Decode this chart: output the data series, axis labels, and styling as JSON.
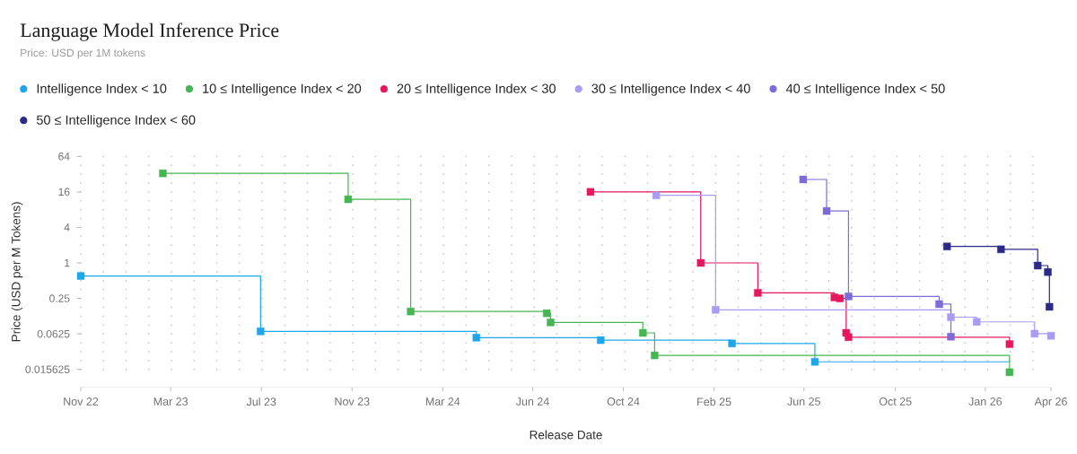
{
  "chart_data": {
    "type": "step",
    "title": "Language Model Inference Price",
    "subtitle": "Price: USD per 1M tokens",
    "xlabel": "Release Date",
    "ylabel": "Price (USD per M Tokens)",
    "series": [
      {
        "name": "Intelligence Index < 10",
        "color": "#1ea6ec",
        "x": [
          "2022-11-28",
          "2023-07-16",
          "2024-04-17",
          "2024-09-23",
          "2025-03-10",
          "2025-06-24"
        ],
        "values": [
          0.6,
          0.069,
          0.054,
          0.049,
          0.043,
          0.021
        ]
      },
      {
        "color": "#1ea6ec",
        "marker": "none",
        "x": [
          "2025-06-24",
          "2026-02-28"
        ],
        "values": [
          0.021,
          0.021
        ]
      },
      {
        "name": "10 ≤ Intelligence Index < 20",
        "color": "#45b652",
        "x": [
          "2023-03-13",
          "2023-11-05",
          "2024-01-24",
          "2024-07-16",
          "2024-07-21",
          "2024-11-16",
          "2024-12-01",
          "2026-02-28"
        ],
        "values": [
          33,
          12,
          0.15,
          0.14,
          0.098,
          0.065,
          0.027,
          0.014
        ]
      },
      {
        "name": "20 ≤ Intelligence Index < 30",
        "color": "#e5175f",
        "x": [
          "2024-09-10",
          "2025-01-29",
          "2025-04-12",
          "2025-07-19",
          "2025-07-26",
          "2025-08-03",
          "2025-08-06",
          "2026-02-28"
        ],
        "values": [
          16,
          1.0,
          0.31,
          0.26,
          0.25,
          0.065,
          0.055,
          0.042
        ]
      },
      {
        "name": "30 ≤ Intelligence Index < 40",
        "color": "#a99bf6",
        "x": [
          "2024-12-03",
          "2025-02-17",
          "2025-12-15",
          "2026-01-17",
          "2026-04-01",
          "2026-04-22"
        ],
        "values": [
          14,
          0.16,
          0.12,
          0.1,
          0.063,
          0.058
        ]
      },
      {
        "name": "40 ≤ Intelligence Index < 50",
        "color": "#7d6bd8",
        "x": [
          "2025-06-09",
          "2025-07-09",
          "2025-08-06",
          "2025-11-30",
          "2025-12-15"
        ],
        "values": [
          26,
          7.6,
          0.27,
          0.2,
          0.056
        ]
      },
      {
        "name": "50 ≤ Intelligence Index < 60",
        "color": "#2c2a88",
        "x": [
          "2025-12-10",
          "2026-02-17",
          "2026-04-05",
          "2026-04-18",
          "2026-04-20"
        ],
        "values": [
          1.9,
          1.7,
          0.9,
          0.7,
          0.18
        ]
      }
    ],
    "xlim": [
      "2022-11-28",
      "2026-04-22"
    ],
    "xticks": [
      {
        "value": "2022-11-28",
        "label": "Nov 22"
      },
      {
        "value": "2023-03-23",
        "label": "Mar 23"
      },
      {
        "value": "2023-07-17",
        "label": "Jul 23"
      },
      {
        "value": "2023-11-10",
        "label": "Nov 23"
      },
      {
        "value": "2024-03-05",
        "label": "Mar 24"
      },
      {
        "value": "2024-06-28",
        "label": "Jun 24"
      },
      {
        "value": "2024-10-22",
        "label": "Oct 24"
      },
      {
        "value": "2025-02-15",
        "label": "Feb 25"
      },
      {
        "value": "2025-06-10",
        "label": "Jun 25"
      },
      {
        "value": "2025-10-05",
        "label": "Oct 25"
      },
      {
        "value": "2026-01-28",
        "label": "Jan 26"
      },
      {
        "value": "2026-04-22",
        "label": "Apr 26"
      }
    ],
    "ylim": [
      0.0078125,
      64
    ],
    "yticks": [
      0.015625,
      0.0625,
      0.25,
      1,
      4,
      16,
      64
    ],
    "log": "y",
    "grid": true,
    "legend": "top left",
    "marker": "square"
  }
}
